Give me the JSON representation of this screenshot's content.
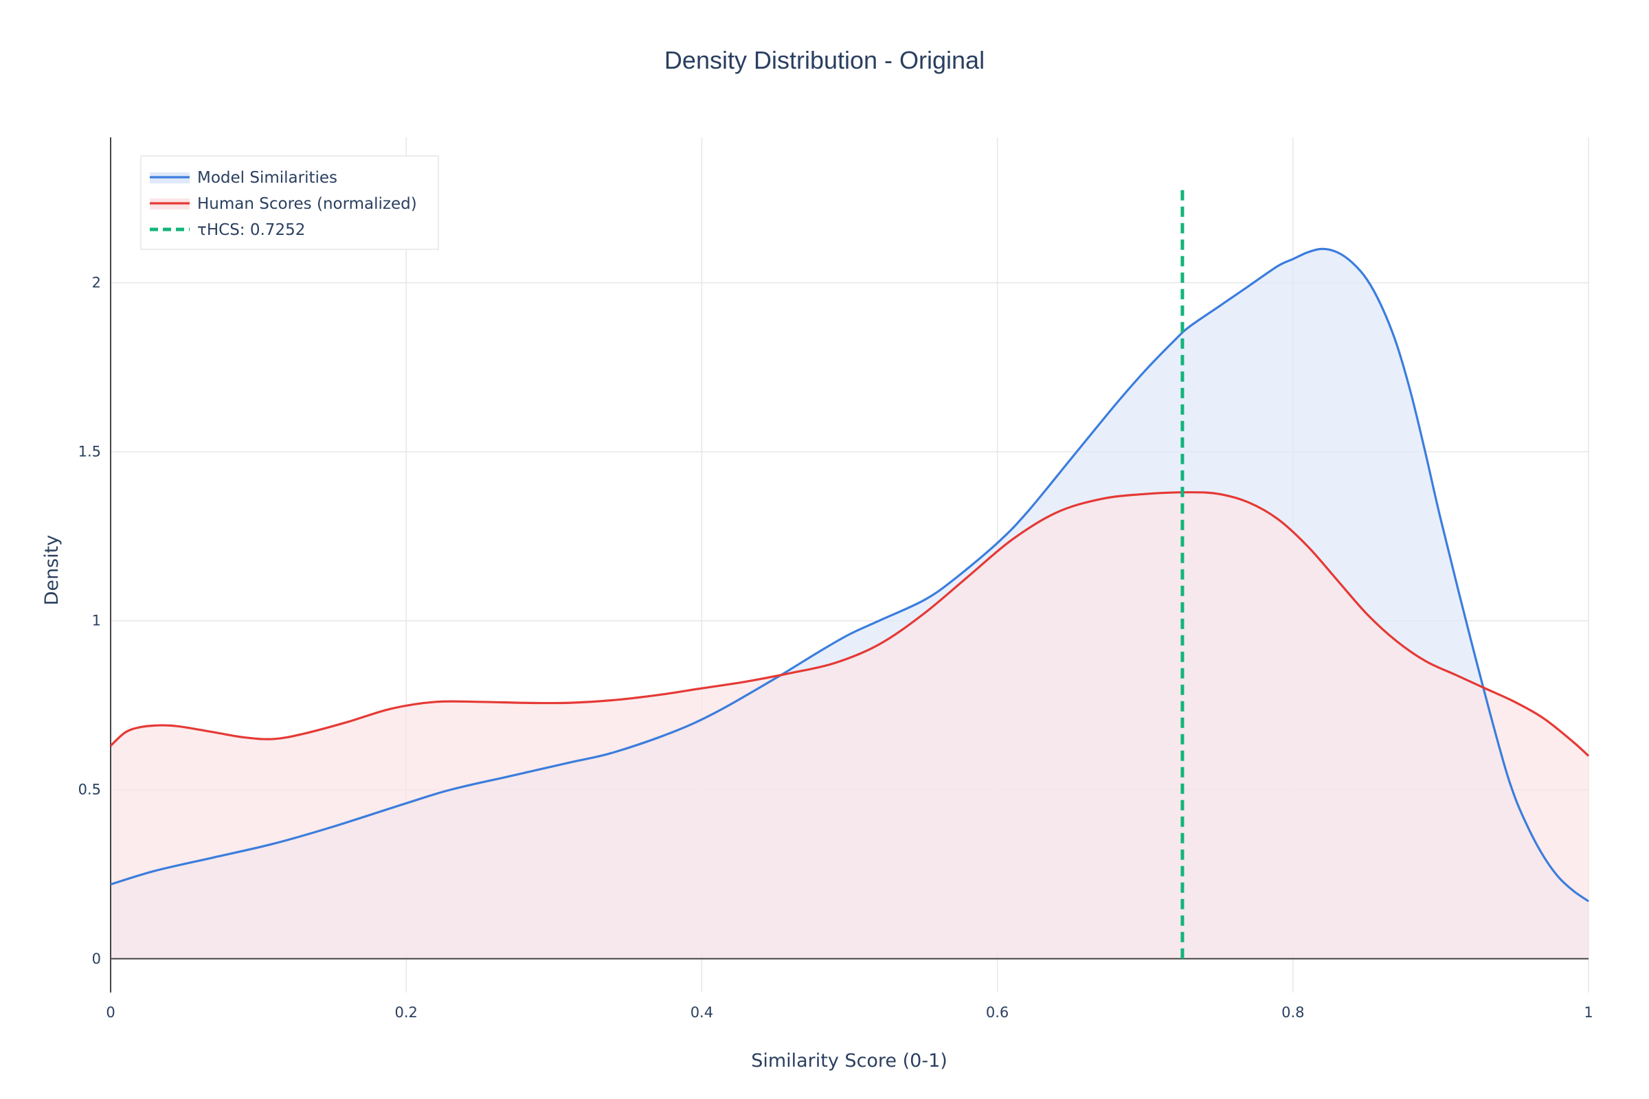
{
  "chart_data": {
    "type": "area",
    "title": "Density Distribution - Original",
    "xlabel": "Similarity Score (0-1)",
    "ylabel": "Density",
    "xlim": [
      0,
      1
    ],
    "ylim": [
      -0.1,
      2.43
    ],
    "x_ticks": [
      0,
      0.2,
      0.4,
      0.6,
      0.8,
      1
    ],
    "x_tick_labels": [
      "0",
      "0.2",
      "0.4",
      "0.6",
      "0.8",
      "1"
    ],
    "y_ticks": [
      0,
      0.5,
      1,
      1.5,
      2
    ],
    "y_tick_labels": [
      "0",
      "0.5",
      "1",
      "1.5",
      "2"
    ],
    "grid": true,
    "legend_position": "top-left",
    "series": [
      {
        "name": "Model Similarities",
        "color": "#3b7ddd",
        "fill": "#dfe9fa",
        "x": [
          0,
          0.03,
          0.07,
          0.11,
          0.15,
          0.2,
          0.23,
          0.27,
          0.31,
          0.34,
          0.38,
          0.41,
          0.45,
          0.48,
          0.5,
          0.52,
          0.55,
          0.57,
          0.6,
          0.62,
          0.65,
          0.68,
          0.7,
          0.72,
          0.73,
          0.75,
          0.77,
          0.79,
          0.8,
          0.81,
          0.82,
          0.83,
          0.84,
          0.85,
          0.86,
          0.87,
          0.88,
          0.89,
          0.9,
          0.92,
          0.94,
          0.95,
          0.96,
          0.97,
          0.98,
          0.99,
          1
        ],
        "y": [
          0.22,
          0.26,
          0.3,
          0.34,
          0.39,
          0.46,
          0.5,
          0.54,
          0.58,
          0.61,
          0.67,
          0.73,
          0.83,
          0.91,
          0.96,
          1.0,
          1.06,
          1.12,
          1.23,
          1.32,
          1.48,
          1.64,
          1.74,
          1.83,
          1.87,
          1.93,
          1.99,
          2.05,
          2.07,
          2.09,
          2.1,
          2.09,
          2.06,
          2.01,
          1.93,
          1.82,
          1.67,
          1.49,
          1.3,
          0.95,
          0.62,
          0.48,
          0.38,
          0.3,
          0.24,
          0.2,
          0.17
        ]
      },
      {
        "name": "Human Scores (normalized)",
        "color": "#e53935",
        "fill": "#fbe4e6",
        "x": [
          0,
          0.01,
          0.02,
          0.03,
          0.04,
          0.05,
          0.07,
          0.09,
          0.11,
          0.13,
          0.16,
          0.19,
          0.22,
          0.25,
          0.28,
          0.31,
          0.34,
          0.37,
          0.4,
          0.43,
          0.46,
          0.49,
          0.52,
          0.55,
          0.58,
          0.61,
          0.64,
          0.67,
          0.7,
          0.73,
          0.75,
          0.77,
          0.79,
          0.81,
          0.83,
          0.85,
          0.87,
          0.89,
          0.91,
          0.93,
          0.95,
          0.97,
          0.99,
          1
        ],
        "y": [
          0.63,
          0.67,
          0.685,
          0.69,
          0.69,
          0.685,
          0.67,
          0.655,
          0.65,
          0.665,
          0.7,
          0.74,
          0.76,
          0.76,
          0.757,
          0.757,
          0.765,
          0.78,
          0.8,
          0.82,
          0.845,
          0.875,
          0.93,
          1.02,
          1.13,
          1.24,
          1.32,
          1.36,
          1.375,
          1.38,
          1.375,
          1.35,
          1.3,
          1.22,
          1.12,
          1.02,
          0.94,
          0.88,
          0.84,
          0.8,
          0.76,
          0.71,
          0.64,
          0.6
        ]
      }
    ],
    "threshold": {
      "name": "τHCS: 0.7252",
      "x": 0.7252,
      "y_range": [
        0,
        2.28
      ],
      "color": "#12b57a",
      "style": "dashed"
    }
  }
}
